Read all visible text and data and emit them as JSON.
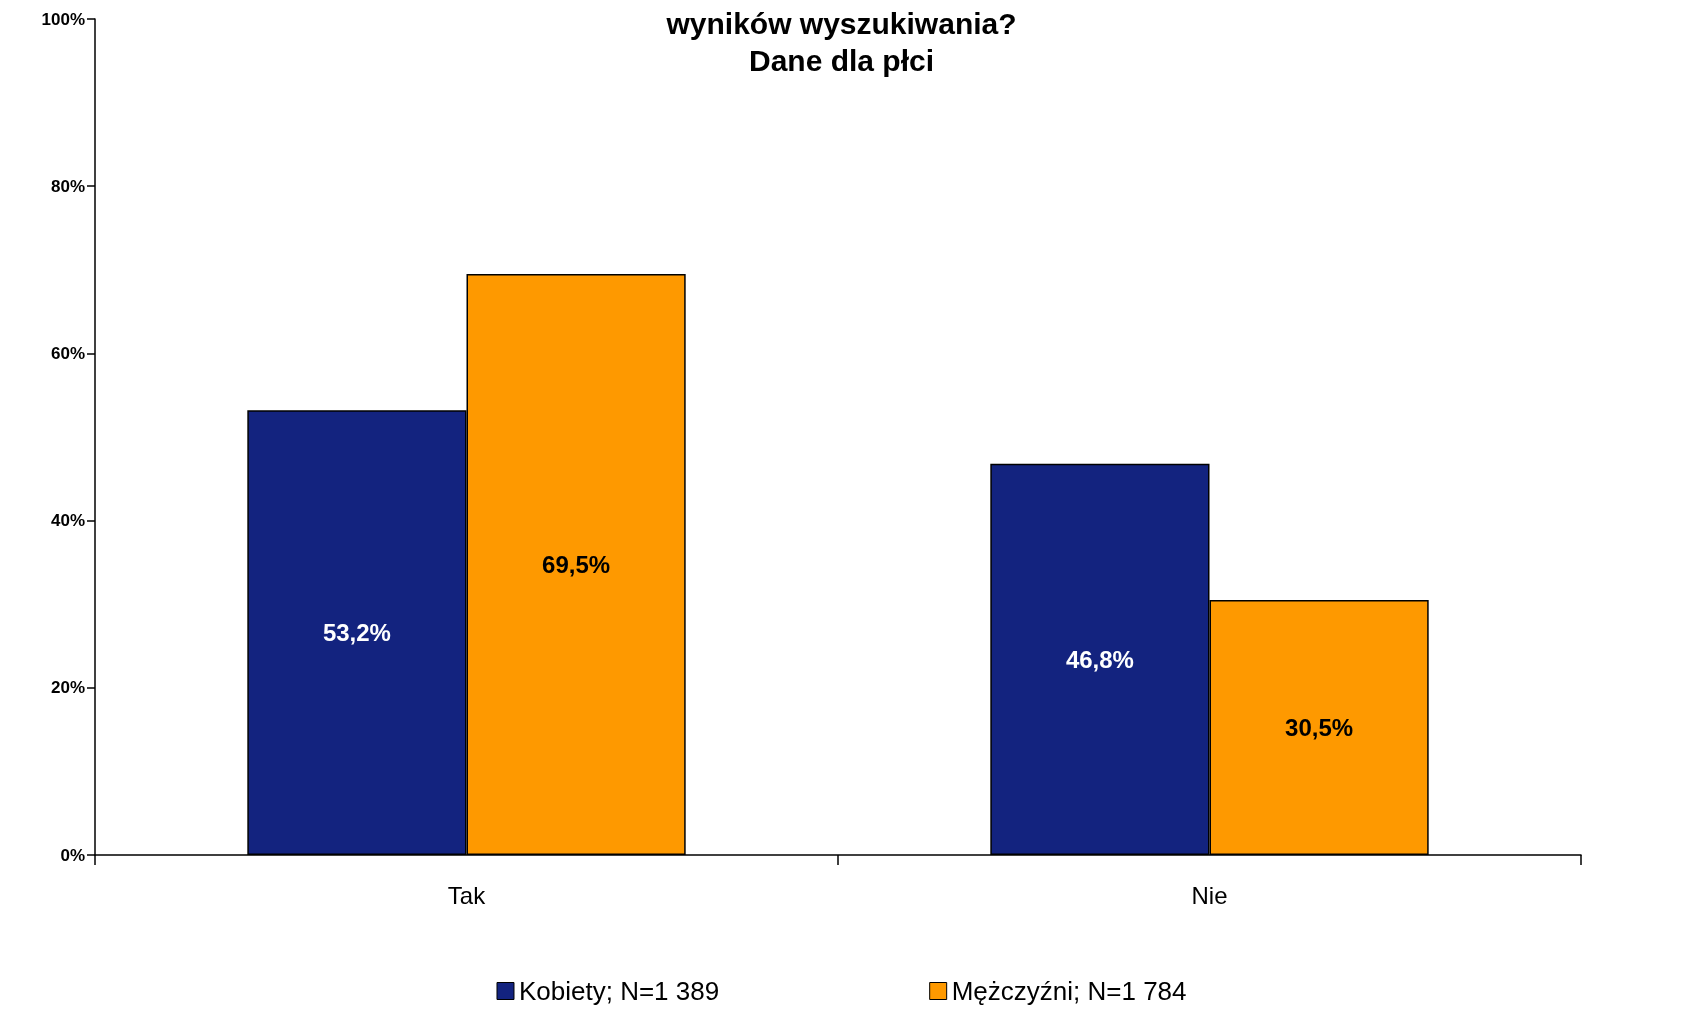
{
  "chart_data": {
    "type": "bar",
    "title": "wyników wyszukiwania?\nDane dla płci",
    "categories": [
      "Tak",
      "Nie"
    ],
    "series": [
      {
        "name": "Kobiety; N=1 389",
        "color": "#13237f",
        "values": [
          53.2,
          46.8
        ],
        "value_labels": [
          "53,2%",
          "46,8%"
        ]
      },
      {
        "name": "Mężczyźni; N=1 784",
        "color": "#fe9900",
        "values": [
          69.5,
          30.5
        ],
        "value_labels": [
          "69,5%",
          "30,5%"
        ]
      }
    ],
    "ylim": [
      0,
      100
    ],
    "yticks": [
      {
        "value": 0,
        "label": "0%"
      },
      {
        "value": 20,
        "label": "20%"
      },
      {
        "value": 40,
        "label": "40%"
      },
      {
        "value": 60,
        "label": "60%"
      },
      {
        "value": 80,
        "label": "80%"
      },
      {
        "value": 100,
        "label": "100%"
      }
    ],
    "grid": false,
    "legend": "bottom"
  }
}
